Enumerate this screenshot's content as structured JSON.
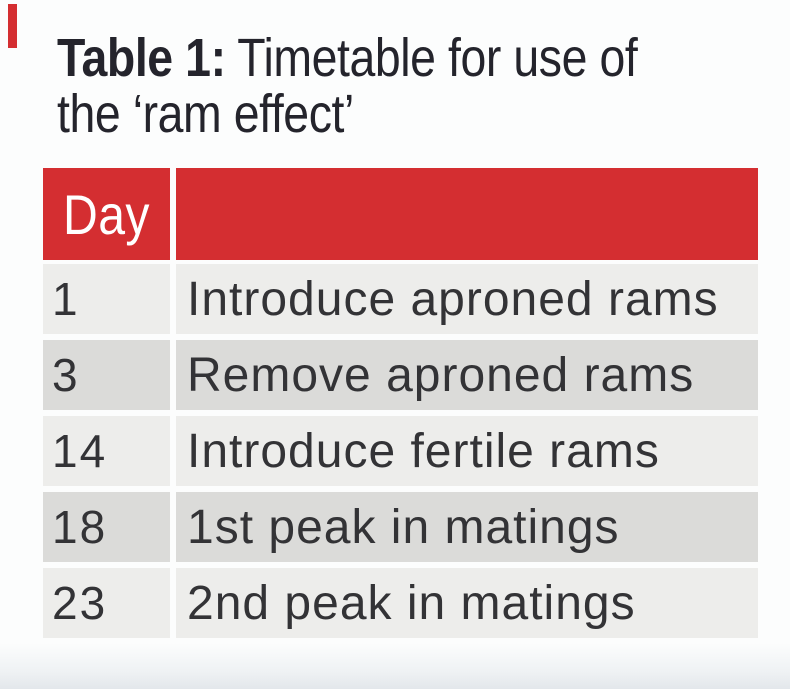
{
  "colors": {
    "red": "#d42e31",
    "row_light": "#ededeb",
    "row_dark": "#dbdbd9",
    "text": "#333336",
    "title": "#24242c",
    "header_text": "#ffffff",
    "page_bg": "#fcfdfd"
  },
  "title": {
    "prefix": "Table 1:",
    "line1_rest": " Timetable for use of",
    "line2": "the ‘ram effect’"
  },
  "table": {
    "header": {
      "day_label": "Day",
      "desc_label": ""
    },
    "rows": [
      {
        "day": "1",
        "desc": "Introduce aproned rams"
      },
      {
        "day": "3",
        "desc": "Remove aproned rams"
      },
      {
        "day": "14",
        "desc": "Introduce fertile rams"
      },
      {
        "day": "18",
        "desc": "1st peak in matings"
      },
      {
        "day": "23",
        "desc": "2nd peak in matings"
      }
    ]
  },
  "chart_data": {
    "type": "table",
    "title": "Table 1: Timetable for use of the ‘ram effect’",
    "columns": [
      "Day",
      ""
    ],
    "rows": [
      [
        1,
        "Introduce aproned rams"
      ],
      [
        3,
        "Remove aproned rams"
      ],
      [
        14,
        "Introduce fertile rams"
      ],
      [
        18,
        "1st peak in matings"
      ],
      [
        23,
        "2nd peak in matings"
      ]
    ]
  }
}
